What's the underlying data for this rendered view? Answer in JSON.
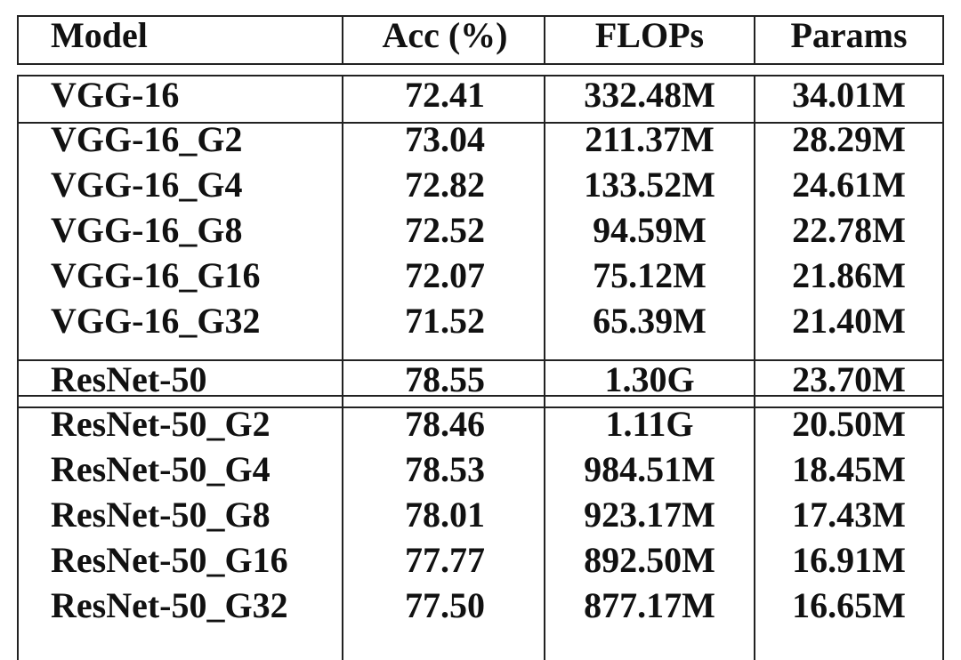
{
  "header": {
    "columns": [
      "Model",
      "Acc (%)",
      "FLOPs",
      "Params"
    ]
  },
  "groups": [
    {
      "rows": [
        [
          "VGG-16",
          "72.41",
          "332.48M",
          "34.01M"
        ],
        [
          "VGG-16_G2",
          {
            "text": "73.04",
            "bold": true
          },
          "211.37M",
          "28.29M"
        ],
        [
          "VGG-16_G4",
          "72.82",
          "133.52M",
          "24.61M"
        ],
        [
          "VGG-16_G8",
          "72.52",
          "94.59M",
          "22.78M"
        ],
        [
          "VGG-16_G16",
          "72.07",
          "75.12M",
          "21.86M"
        ],
        [
          "VGG-16_G32",
          "71.52",
          "65.39M",
          "21.40M"
        ]
      ]
    },
    {
      "rows": [
        [
          "ResNet-50",
          "78.55",
          "1.30G",
          "23.70M"
        ],
        [
          "ResNet-50_G2",
          "78.46",
          "1.11G",
          "20.50M"
        ],
        [
          "ResNet-50_G4",
          {
            "text": "78.53",
            "bold": true
          },
          "984.51M",
          "18.45M"
        ],
        [
          "ResNet-50_G8",
          "78.01",
          "923.17M",
          "17.43M"
        ],
        [
          "ResNet-50_G16",
          "77.77",
          "892.50M",
          "16.91M"
        ],
        [
          "ResNet-50_G32",
          "77.50",
          "877.17M",
          "16.65M"
        ]
      ]
    }
  ]
}
